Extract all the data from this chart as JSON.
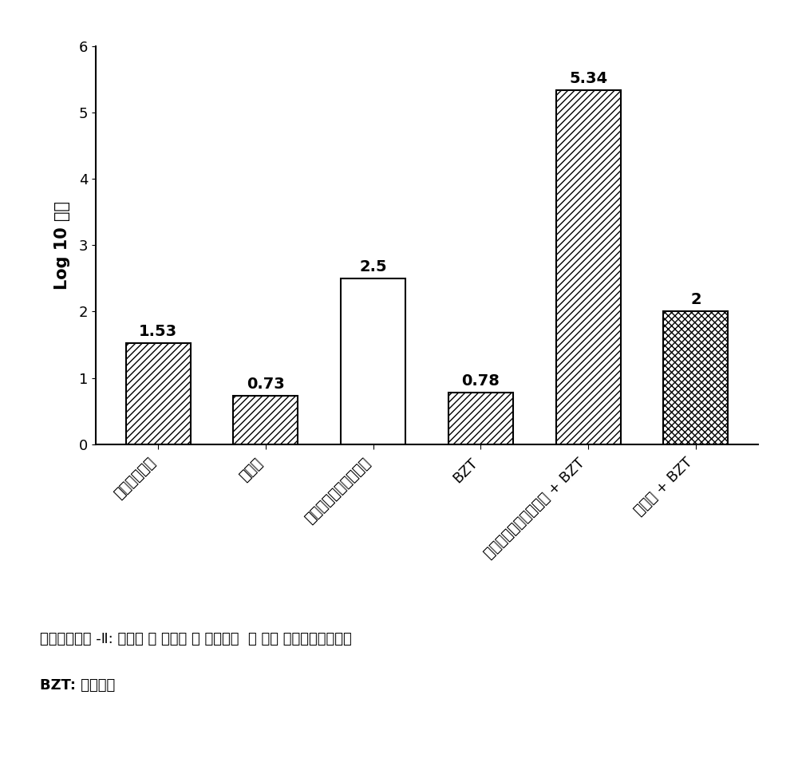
{
  "categories": [
    "植物性共混物",
    "辛二醇",
    "植物性共混物＋辛二醇",
    "BZT",
    "植物性共混物＋辛二醇 + BZT",
    "辛二醇 + BZT"
  ],
  "values": [
    1.53,
    0.73,
    2.5,
    0.78,
    5.34,
    2.0
  ],
  "value_labels": [
    "1.53",
    "0.73",
    "2.5",
    "0.78",
    "5.34",
    "2"
  ],
  "hatch_patterns": [
    "////",
    "////",
    "",
    "////",
    "////",
    "xxxx"
  ],
  "bar_facecolors": [
    "white",
    "white",
    "white",
    "white",
    "white",
    "white"
  ],
  "bar_edgecolors": [
    "black",
    "black",
    "black",
    "black",
    "black",
    "black"
  ],
  "ylabel": "Log 10 降低",
  "ylim": [
    0,
    6
  ],
  "yticks": [
    0,
    1,
    2,
    3,
    4,
    5,
    6
  ],
  "background_color": "white",
  "note_line1": "植物性共混物 -Ⅱ: 百里酚 ＋ 柠檬油 ＋ 柠檬草油  ＋ 橙油 ＋葡萄柚籽提取物",
  "note_line2": "BZT: 苯索氯鐥",
  "bar_width": 0.6,
  "label_fontsize": 14,
  "tick_fontsize": 13,
  "ylabel_fontsize": 15,
  "note_fontsize": 13,
  "value_label_fontsize": 14
}
